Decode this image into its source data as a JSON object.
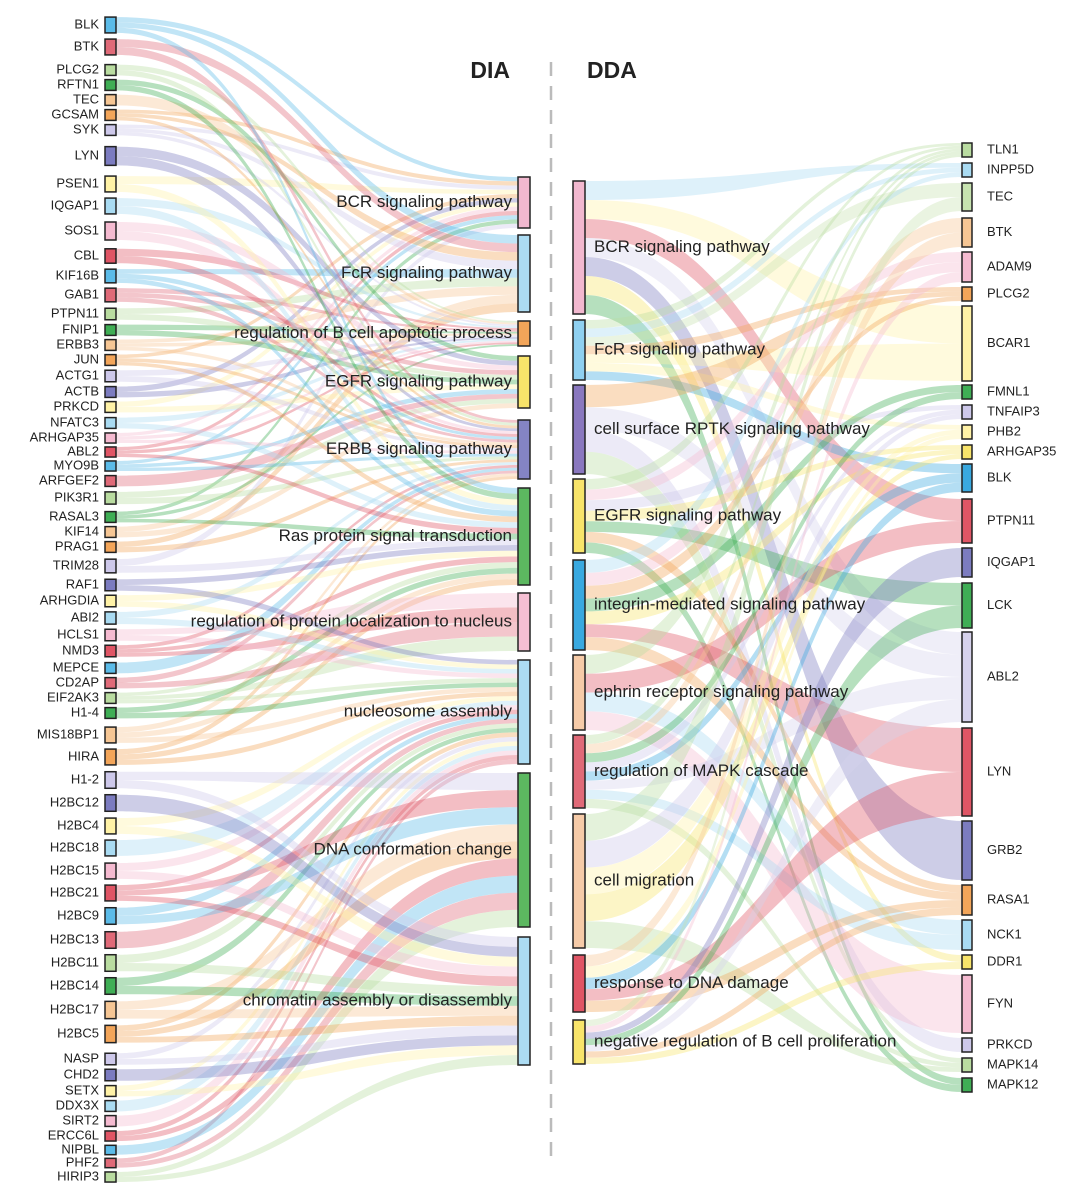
{
  "header": {
    "left_title": "DIA",
    "right_title": "DDA"
  },
  "dia": {
    "genes": [
      "BLK",
      "BTK",
      "PLCG2",
      "RFTN1",
      "TEC",
      "GCSAM",
      "SYK",
      "LYN",
      "PSEN1",
      "IQGAP1",
      "SOS1",
      "CBL",
      "KIF16B",
      "GAB1",
      "PTPN11",
      "FNIP1",
      "ERBB3",
      "JUN",
      "ACTG1",
      "ACTB",
      "PRKCD",
      "NFATC3",
      "ARHGAP35",
      "ABL2",
      "MYO9B",
      "ARFGEF2",
      "PIK3R1",
      "RASAL3",
      "KIF14",
      "PRAG1",
      "TRIM28",
      "RAF1",
      "ARHGDIA",
      "ABI2",
      "HCLS1",
      "NMD3",
      "MEPCE",
      "CD2AP",
      "EIF2AK3",
      "H1-4",
      "MIS18BP1",
      "HIRA",
      "H1-2",
      "H2BC12",
      "H2BC4",
      "H2BC18",
      "H2BC15",
      "H2BC21",
      "H2BC9",
      "H2BC13",
      "H2BC11",
      "H2BC14",
      "H2BC17",
      "H2BC5",
      "NASP",
      "CHD2",
      "SETX",
      "DDX3X",
      "SIRT2",
      "ERCC6L",
      "NIPBL",
      "PHF2",
      "HIRIP3"
    ],
    "pathways": [
      "BCR signaling pathway",
      "FcR signaling pathway",
      "regulation of B cell apoptotic process",
      "EGFR signaling pathway",
      "ERBB signaling pathway",
      "Ras protein signal transduction",
      "regulation of protein localization to nucleus",
      "nucleosome assembly",
      "DNA conformation change",
      "chromatin assembly or disassembly"
    ]
  },
  "dda": {
    "pathways": [
      "BCR signaling pathway",
      "FcR signaling pathway",
      "cell surface RPTK signaling pathway",
      "EGFR signaling pathway",
      "integrin-mediated signaling pathway",
      "ephrin receptor signaling pathway",
      "regulation of MAPK cascade",
      "cell migration",
      "response to DNA damage",
      "negative regulation of B cell proliferation"
    ],
    "genes": [
      "TLN1",
      "INPP5D",
      "TEC",
      "BTK",
      "ADAM9",
      "PLCG2",
      "BCAR1",
      "FMNL1",
      "TNFAIP3",
      "PHB2",
      "ARHGAP35",
      "BLK",
      "PTPN11",
      "IQGAP1",
      "LCK",
      "ABL2",
      "LYN",
      "GRB2",
      "RASA1",
      "NCK1",
      "DDR1",
      "FYN",
      "PRKCD",
      "MAPK14",
      "MAPK12"
    ]
  }
}
